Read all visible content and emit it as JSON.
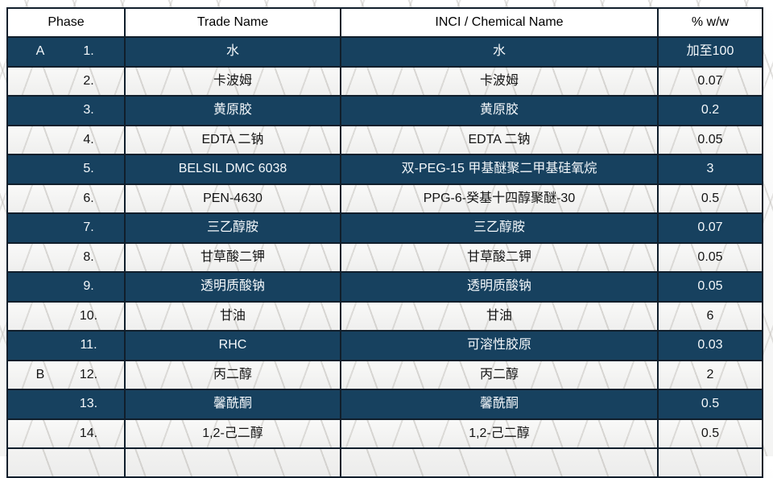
{
  "table": {
    "colors": {
      "dark_row_bg": "#17415f",
      "dark_row_text": "#ffffff",
      "light_row_bg": "#f4f4f3",
      "light_row_text": "#141414",
      "border": "#101e2b"
    },
    "columns": [
      "Phase",
      "Trade Name",
      "INCI / Chemical Name",
      "% w/w"
    ],
    "rows": [
      {
        "phase": "A",
        "num": "1.",
        "trade": "水",
        "inci": "水",
        "pct": "加至100",
        "dark": true
      },
      {
        "phase": "",
        "num": "2.",
        "trade": "卡波姆",
        "inci": "卡波姆",
        "pct": "0.07",
        "dark": false
      },
      {
        "phase": "",
        "num": "3.",
        "trade": "黄原胶",
        "inci": "黄原胶",
        "pct": "0.2",
        "dark": true
      },
      {
        "phase": "",
        "num": "4.",
        "trade": "EDTA 二钠",
        "inci": "EDTA 二钠",
        "pct": "0.05",
        "dark": false
      },
      {
        "phase": "",
        "num": "5.",
        "trade": "BELSIL DMC 6038",
        "inci": "双-PEG-15 甲基醚聚二甲基硅氧烷",
        "pct": "3",
        "dark": true
      },
      {
        "phase": "",
        "num": "6.",
        "trade": "PEN-4630",
        "inci": "PPG-6-癸基十四醇聚醚-30",
        "pct": "0.5",
        "dark": false
      },
      {
        "phase": "",
        "num": "7.",
        "trade": "三乙醇胺",
        "inci": "三乙醇胺",
        "pct": "0.07",
        "dark": true
      },
      {
        "phase": "",
        "num": "8.",
        "trade": "甘草酸二钾",
        "inci": "甘草酸二钾",
        "pct": "0.05",
        "dark": false
      },
      {
        "phase": "",
        "num": "9.",
        "trade": "透明质酸钠",
        "inci": "透明质酸钠",
        "pct": "0.05",
        "dark": true
      },
      {
        "phase": "",
        "num": "10.",
        "trade": "甘油",
        "inci": "甘油",
        "pct": "6",
        "dark": false
      },
      {
        "phase": "",
        "num": "11.",
        "trade": "RHC",
        "inci": "可溶性胶原",
        "pct": "0.03",
        "dark": true
      },
      {
        "phase": "B",
        "num": "12.",
        "trade": "丙二醇",
        "inci": "丙二醇",
        "pct": "2",
        "dark": false
      },
      {
        "phase": "",
        "num": "13.",
        "trade": "馨酰酮",
        "inci": "馨酰酮",
        "pct": "0.5",
        "dark": true
      },
      {
        "phase": "",
        "num": "14.",
        "trade": "1,2-己二醇",
        "inci": "1,2-己二醇",
        "pct": "0.5",
        "dark": false
      }
    ]
  }
}
